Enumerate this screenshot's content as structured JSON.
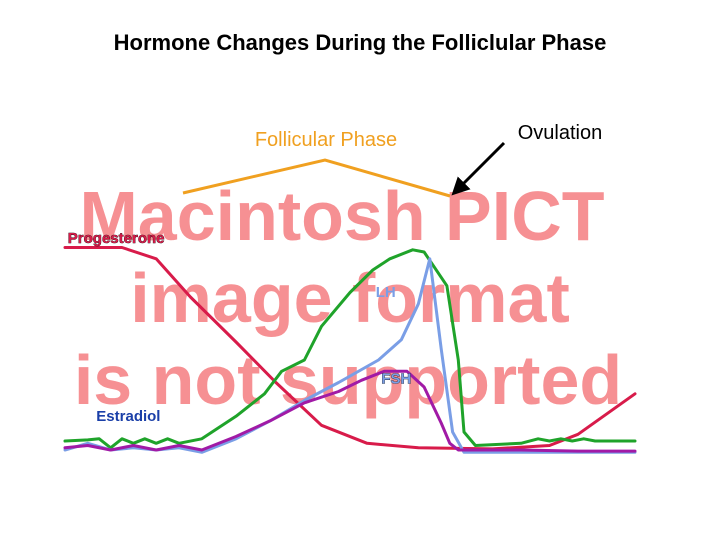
{
  "slide": {
    "title": "Hormone Changes During the Folliclular Phase"
  },
  "annotations": {
    "phase_label": "Follicular Phase",
    "ovulation_label": "Ovulation"
  },
  "placeholder": {
    "lines": [
      "Macintosh PICT",
      "image format",
      "is not supported"
    ]
  },
  "colors": {
    "phase": "#f0a020",
    "placeholder": "#f47c80",
    "progesterone": "#d81b4a",
    "lh": "#1fa32a",
    "fsh": "#7a9ee6",
    "estradiol": "#a11aa6"
  },
  "chart_data": {
    "type": "line",
    "title": "Hormone Changes During the Folliclular Phase",
    "xlabel": "",
    "ylabel": "",
    "xlim": [
      0,
      100
    ],
    "ylim": [
      0,
      100
    ],
    "grid": false,
    "series": [
      {
        "name": "Progesterone",
        "color": "#d81b4a",
        "label_color": "#d81b4a",
        "label_outline": true,
        "label_at": [
          0.5,
          92
        ],
        "points": [
          [
            0,
            90
          ],
          [
            10,
            90
          ],
          [
            16,
            85
          ],
          [
            22,
            68
          ],
          [
            30,
            48
          ],
          [
            37,
            30
          ],
          [
            45,
            11
          ],
          [
            53,
            3
          ],
          [
            62,
            1
          ],
          [
            75,
            0.5
          ],
          [
            85,
            2
          ],
          [
            90,
            7
          ],
          [
            100,
            25
          ]
        ]
      },
      {
        "name": "LH",
        "color": "#1fa32a",
        "label_color": "#7a9ee6",
        "label_outline": false,
        "label_at": [
          54.5,
          68
        ],
        "points": [
          [
            0,
            4
          ],
          [
            4,
            4.5
          ],
          [
            6,
            5
          ],
          [
            8,
            1
          ],
          [
            10,
            5
          ],
          [
            12,
            3
          ],
          [
            14,
            5
          ],
          [
            16,
            3
          ],
          [
            18,
            5
          ],
          [
            20,
            3
          ],
          [
            24,
            5
          ],
          [
            30,
            15
          ],
          [
            35,
            25
          ],
          [
            38,
            35
          ],
          [
            42,
            40
          ],
          [
            45,
            55
          ],
          [
            50,
            70
          ],
          [
            54,
            80
          ],
          [
            57,
            85
          ],
          [
            61,
            89
          ],
          [
            63,
            88
          ],
          [
            67,
            73
          ],
          [
            69,
            40
          ],
          [
            70,
            8
          ],
          [
            72,
            2
          ],
          [
            80,
            3
          ],
          [
            83,
            5
          ],
          [
            85,
            4
          ],
          [
            87,
            5
          ],
          [
            89,
            4
          ],
          [
            91,
            5
          ],
          [
            93,
            4
          ],
          [
            96,
            4
          ],
          [
            100,
            4
          ]
        ]
      },
      {
        "name": "FSH",
        "color": "#7a9ee6",
        "label_color": "#7a9ee6",
        "label_outline": true,
        "label_at": [
          55.5,
          29.5
        ],
        "points": [
          [
            0,
            0
          ],
          [
            4,
            3
          ],
          [
            8,
            0
          ],
          [
            12,
            1
          ],
          [
            16,
            0
          ],
          [
            20,
            1
          ],
          [
            24,
            -1
          ],
          [
            30,
            5
          ],
          [
            36,
            13
          ],
          [
            42,
            22
          ],
          [
            48,
            30
          ],
          [
            55,
            40
          ],
          [
            59,
            49
          ],
          [
            62,
            65
          ],
          [
            64,
            85
          ],
          [
            66,
            45
          ],
          [
            68,
            8
          ],
          [
            70,
            -1
          ],
          [
            80,
            -1
          ],
          [
            90,
            -1
          ],
          [
            100,
            -1
          ]
        ]
      },
      {
        "name": "Estradiol",
        "color": "#a11aa6",
        "label_color": "#1a3fa8",
        "label_outline": false,
        "label_at": [
          5.5,
          13
        ],
        "points": [
          [
            0,
            1
          ],
          [
            4,
            2
          ],
          [
            8,
            0
          ],
          [
            12,
            2
          ],
          [
            16,
            0
          ],
          [
            20,
            2
          ],
          [
            24,
            0
          ],
          [
            30,
            6
          ],
          [
            36,
            13
          ],
          [
            42,
            21
          ],
          [
            48,
            26
          ],
          [
            52,
            31
          ],
          [
            56,
            35
          ],
          [
            60,
            35
          ],
          [
            63,
            28
          ],
          [
            66,
            12
          ],
          [
            67.5,
            3
          ],
          [
            69,
            0
          ],
          [
            80,
            0
          ],
          [
            90,
            -0.5
          ],
          [
            100,
            -0.5
          ]
        ]
      }
    ]
  }
}
